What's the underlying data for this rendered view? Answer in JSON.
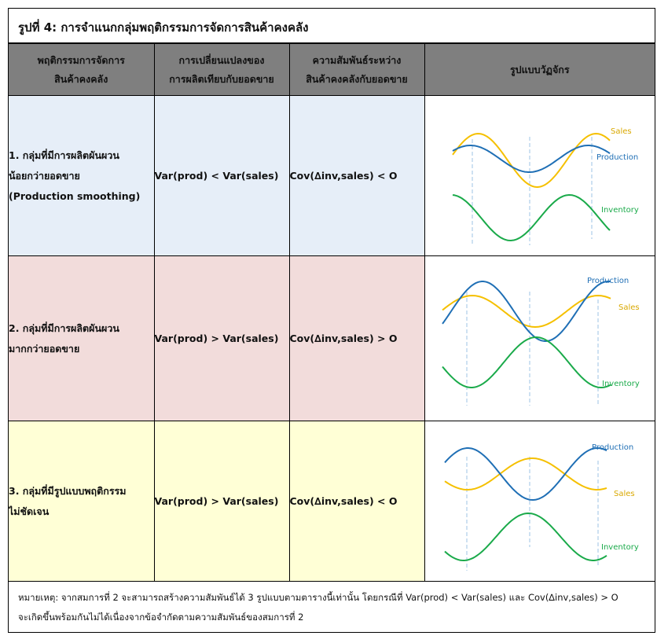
{
  "title": "รูปที่ 4: การจำแนกกลุ่มพฤติกรรมการจัดการสินค้าคงคลัง",
  "headers": {
    "behavior": [
      "พฤติกรรมการจัดการ",
      "สินค้าคงคลัง"
    ],
    "variance": [
      "การเปลี่ยนแปลงของ",
      "การผลิตเทียบกับยอดขาย"
    ],
    "covariance": [
      "ความสัมพันธ์ระหว่าง",
      "สินค้าคงคลังกับยอดขาย"
    ],
    "cycle": "รูปแบบวัฏจักร"
  },
  "rows": [
    {
      "group_lines": [
        "1. กลุ่มที่มีการผลิตผันผวน",
        "น้อยกว่ายอดขาย",
        "(Production smoothing)"
      ],
      "variance": "Var(prod) < Var(sales)",
      "covariance": "Cov(∆inv,sales) < O",
      "labels": {
        "sales": "Sales",
        "production": "Production",
        "inventory": "Inventory"
      }
    },
    {
      "group_lines": [
        "2. กลุ่มที่มีการผลิตผันผวน",
        "มากกว่ายอดขาย"
      ],
      "variance": "Var(prod) > Var(sales)",
      "covariance": "Cov(∆inv,sales) > O",
      "labels": {
        "sales": "Sales",
        "production": "Production",
        "inventory": "Inventory"
      }
    },
    {
      "group_lines": [
        "3. กลุ่มที่มีรูปแบบพฤติกรรม",
        "ไม่ชัดเจน"
      ],
      "variance": "Var(prod) > Var(sales)",
      "covariance": "Cov(∆inv,sales) < O",
      "labels": {
        "sales": "Sales",
        "production": "Production",
        "inventory": "Inventory"
      }
    }
  ],
  "note": [
    "หมายเหตุ: จากสมการที่ 2 จะสามารถสร้างความสัมพันธ์ได้ 3 รูปแบบตามตารางนี้เท่านั้น โดยกรณีที่ Var(prod) < Var(sales) และ Cov(∆inv,sales) > O",
    "จะเกิดขึ้นพร้อมกันไม่ได้เนื่องจากข้อจำกัดตามความสัมพันธ์ของสมการที่ 2"
  ],
  "colors": {
    "sales": "#f5c000",
    "production": "#1f6fb5",
    "inventory": "#1aaa4a",
    "guide": "#9dc3e6",
    "header_bg": "#7f7f7f",
    "row1_bg": "#e6eef8",
    "row2_bg": "#f2dcdb",
    "row3_bg": "#ffffd6"
  }
}
